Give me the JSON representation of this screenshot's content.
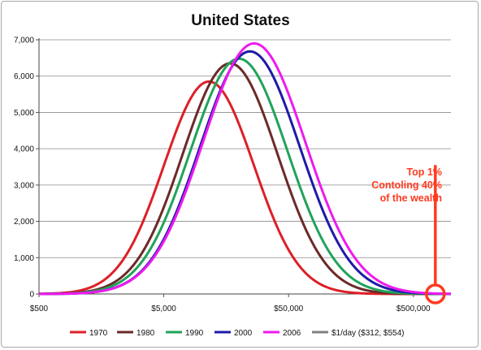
{
  "chart_data": {
    "type": "line",
    "title": "United States",
    "x_scale": "log",
    "xlim": [
      500,
      1000000
    ],
    "ylim": [
      0,
      7000
    ],
    "x_ticks": [
      {
        "value": 500,
        "label": "$500"
      },
      {
        "value": 5000,
        "label": "$5,000"
      },
      {
        "value": 50000,
        "label": "$50,000"
      },
      {
        "value": 500000,
        "label": "$500,000"
      }
    ],
    "y_ticks": [
      {
        "value": 0,
        "label": "0"
      },
      {
        "value": 1000,
        "label": "1,000"
      },
      {
        "value": 2000,
        "label": "2,000"
      },
      {
        "value": 3000,
        "label": "3,000"
      },
      {
        "value": 4000,
        "label": "4,000"
      },
      {
        "value": 5000,
        "label": "5,000"
      },
      {
        "value": 6000,
        "label": "6,000"
      },
      {
        "value": 7000,
        "label": "7,000"
      }
    ],
    "grid": "horizontal",
    "legend_position": "bottom",
    "series": [
      {
        "name": "1970",
        "color": "#dd1f26",
        "peak_x": 11500,
        "peak_y": 5850,
        "log_sd": 0.36
      },
      {
        "name": "1980",
        "color": "#6b2a28",
        "peak_x": 17000,
        "peak_y": 6350,
        "log_sd": 0.38
      },
      {
        "name": "1990",
        "color": "#20a35a",
        "peak_x": 20000,
        "peak_y": 6480,
        "log_sd": 0.39
      },
      {
        "name": "2000",
        "color": "#1f1aa8",
        "peak_x": 24500,
        "peak_y": 6680,
        "log_sd": 0.4
      },
      {
        "name": "2006",
        "color": "#ee1aee",
        "peak_x": 26500,
        "peak_y": 6900,
        "log_sd": 0.41
      },
      {
        "name": "$1/day ($312, $554)",
        "color": "#808080",
        "points": []
      }
    ],
    "annotation": {
      "lines": [
        "Top 1%",
        "Contoling 40%",
        "of the wealth"
      ],
      "color": "#ff3b1f",
      "marker_x": 750000,
      "marker_y": 0,
      "line_top_y": 3550
    }
  }
}
